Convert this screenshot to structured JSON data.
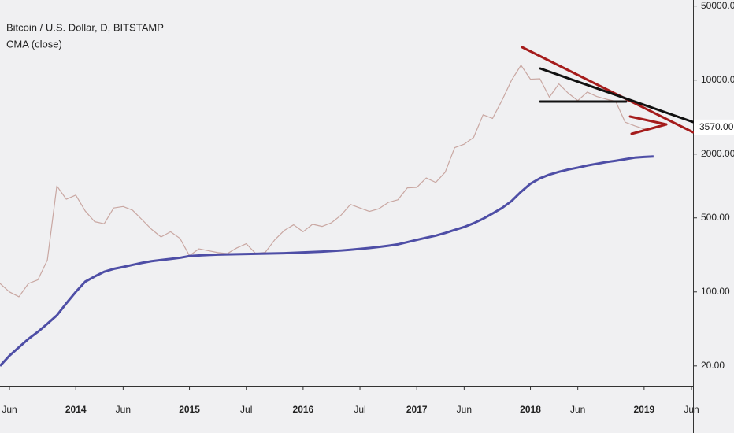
{
  "chart_data": {
    "type": "line",
    "title": "Bitcoin / U.S. Dollar, D, BITSTAMP",
    "subtitle": "CMA (close)",
    "x": [
      "2013-05",
      "2013-06",
      "2013-07",
      "2013-08",
      "2013-09",
      "2013-10",
      "2013-11",
      "2013-12",
      "2014-01",
      "2014-02",
      "2014-03",
      "2014-04",
      "2014-05",
      "2014-06",
      "2014-07",
      "2014-08",
      "2014-09",
      "2014-10",
      "2014-11",
      "2014-12",
      "2015-01",
      "2015-02",
      "2015-03",
      "2015-04",
      "2015-05",
      "2015-06",
      "2015-07",
      "2015-08",
      "2015-09",
      "2015-10",
      "2015-11",
      "2015-12",
      "2016-01",
      "2016-02",
      "2016-03",
      "2016-04",
      "2016-05",
      "2016-06",
      "2016-07",
      "2016-08",
      "2016-09",
      "2016-10",
      "2016-11",
      "2016-12",
      "2017-01",
      "2017-02",
      "2017-03",
      "2017-04",
      "2017-05",
      "2017-06",
      "2017-07",
      "2017-08",
      "2017-09",
      "2017-10",
      "2017-11",
      "2017-12",
      "2018-01",
      "2018-02",
      "2018-03",
      "2018-04",
      "2018-05",
      "2018-06",
      "2018-07",
      "2018-08",
      "2018-09",
      "2018-10",
      "2018-11",
      "2018-12",
      "2019-01",
      "2019-02"
    ],
    "series": [
      {
        "color": "#c9a7a2",
        "values": [
          120,
          100,
          90,
          120,
          130,
          200,
          1000,
          750,
          820,
          580,
          460,
          440,
          620,
          640,
          590,
          480,
          390,
          330,
          370,
          320,
          220,
          255,
          245,
          235,
          230,
          260,
          285,
          230,
          236,
          310,
          380,
          430,
          370,
          435,
          415,
          450,
          530,
          670,
          620,
          575,
          610,
          700,
          740,
          960,
          970,
          1190,
          1080,
          1350,
          2300,
          2480,
          2870,
          4700,
          4340,
          6450,
          9950,
          13800,
          10200,
          10300,
          6900,
          9200,
          7500,
          6400,
          7700,
          7000,
          6600,
          6300,
          4000,
          3700,
          3450,
          3570
        ]
      },
      {
        "name": "CMA (close)",
        "color": "#4e4ea6",
        "values": [
          20,
          25,
          30,
          36,
          42,
          50,
          60,
          78,
          100,
          125,
          140,
          155,
          165,
          172,
          180,
          188,
          195,
          200,
          205,
          210,
          218,
          221,
          223,
          225,
          226,
          227,
          228,
          229,
          230,
          231,
          232,
          234,
          236,
          238,
          240,
          243,
          246,
          250,
          255,
          260,
          266,
          273,
          281,
          295,
          310,
          325,
          340,
          360,
          385,
          410,
          445,
          490,
          550,
          620,
          720,
          880,
          1050,
          1180,
          1280,
          1360,
          1430,
          1490,
          1560,
          1620,
          1680,
          1730,
          1790,
          1850,
          1880,
          1900
        ]
      }
    ],
    "last_price": {
      "value": 3570,
      "label": "3570.00"
    },
    "log_y": true,
    "grid": false,
    "xlim": [
      "2013-05",
      "2019-06"
    ],
    "xticks": [
      {
        "value": "2013-06",
        "label": "Jun"
      },
      {
        "value": "2014-01",
        "label": "2014"
      },
      {
        "value": "2014-06",
        "label": "Jun"
      },
      {
        "value": "2015-01",
        "label": "2015"
      },
      {
        "value": "2015-07",
        "label": "Jul"
      },
      {
        "value": "2016-01",
        "label": "2016"
      },
      {
        "value": "2016-07",
        "label": "Jul"
      },
      {
        "value": "2017-01",
        "label": "2017"
      },
      {
        "value": "2017-06",
        "label": "Jun"
      },
      {
        "value": "2018-01",
        "label": "2018"
      },
      {
        "value": "2018-06",
        "label": "Jun"
      },
      {
        "value": "2019-01",
        "label": "2019"
      },
      {
        "value": "2019-06",
        "label": "Jun"
      }
    ],
    "ylim": [
      13,
      57000
    ],
    "yticks": [
      {
        "value": 20,
        "label": "20.00"
      },
      {
        "value": 100,
        "label": "100.00"
      },
      {
        "value": 500,
        "label": "500.00"
      },
      {
        "value": 2000,
        "label": "2000.00"
      },
      {
        "value": 10000,
        "label": "10000.00"
      },
      {
        "value": 50000,
        "label": "50000.00"
      }
    ]
  }
}
